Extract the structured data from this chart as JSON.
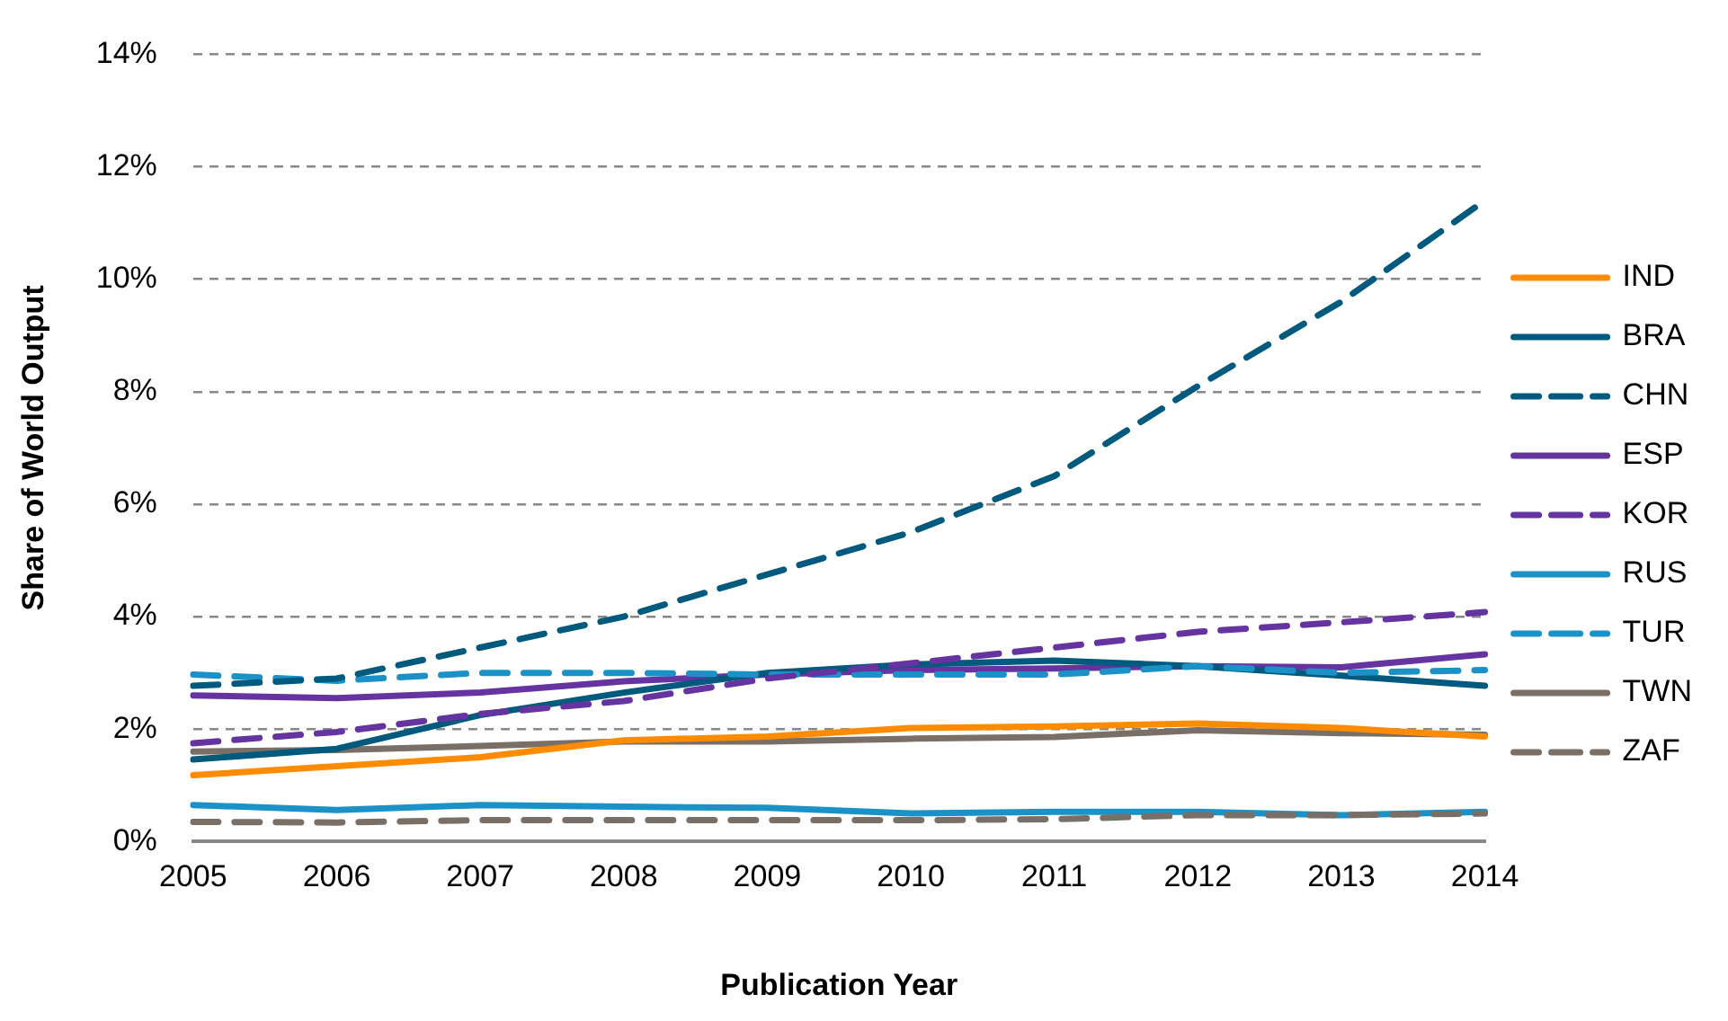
{
  "chart_data": {
    "type": "line",
    "xlabel": "Publication Year",
    "ylabel": "Share of World Output",
    "categories": [
      "2005",
      "2006",
      "2007",
      "2008",
      "2009",
      "2010",
      "2011",
      "2012",
      "2013",
      "2014"
    ],
    "series": [
      {
        "name": "IND",
        "color": "#ff8c00",
        "line_style": "solid",
        "values": [
          1.18,
          1.34,
          1.5,
          1.8,
          1.87,
          2.02,
          2.05,
          2.1,
          2.02,
          1.87
        ]
      },
      {
        "name": "BRA",
        "color": "#005a7e",
        "line_style": "solid",
        "values": [
          1.46,
          1.65,
          2.25,
          2.65,
          3.0,
          3.15,
          3.22,
          3.12,
          2.95,
          2.77
        ]
      },
      {
        "name": "CHN",
        "color": "#005a7e",
        "line_style": "dashed",
        "values": [
          2.77,
          2.9,
          3.45,
          4.0,
          4.75,
          5.5,
          6.5,
          8.1,
          9.6,
          11.4
        ]
      },
      {
        "name": "ESP",
        "color": "#6634a1",
        "line_style": "solid",
        "values": [
          2.6,
          2.55,
          2.65,
          2.85,
          2.97,
          3.05,
          3.08,
          3.12,
          3.1,
          3.33
        ]
      },
      {
        "name": "KOR",
        "color": "#6634a1",
        "line_style": "dashed",
        "values": [
          1.75,
          1.95,
          2.27,
          2.5,
          2.9,
          3.17,
          3.45,
          3.73,
          3.9,
          4.08
        ]
      },
      {
        "name": "RUS",
        "color": "#1a92c8",
        "line_style": "solid",
        "values": [
          0.65,
          0.56,
          0.65,
          0.62,
          0.6,
          0.5,
          0.53,
          0.53,
          0.47,
          0.53
        ]
      },
      {
        "name": "TUR",
        "color": "#1a92c8",
        "line_style": "dashed",
        "values": [
          2.97,
          2.86,
          3.0,
          3.0,
          2.97,
          2.97,
          2.97,
          3.12,
          3.0,
          3.05
        ]
      },
      {
        "name": "TWN",
        "color": "#7a6f66",
        "line_style": "solid",
        "values": [
          1.6,
          1.63,
          1.7,
          1.78,
          1.78,
          1.83,
          1.86,
          1.98,
          1.93,
          1.9
        ]
      },
      {
        "name": "ZAF",
        "color": "#7a6f66",
        "line_style": "dashed",
        "values": [
          0.35,
          0.34,
          0.38,
          0.38,
          0.38,
          0.38,
          0.4,
          0.47,
          0.47,
          0.5
        ]
      }
    ],
    "ylim": [
      0,
      14
    ],
    "yticks": [
      {
        "value": 0,
        "label": "0%"
      },
      {
        "value": 2,
        "label": "2%"
      },
      {
        "value": 4,
        "label": "4%"
      },
      {
        "value": 6,
        "label": "6%"
      },
      {
        "value": 8,
        "label": "8%"
      },
      {
        "value": 10,
        "label": "10%"
      },
      {
        "value": 12,
        "label": "12%"
      },
      {
        "value": 14,
        "label": "14%"
      }
    ],
    "grid": "y",
    "legend": "right",
    "marker": "none"
  }
}
